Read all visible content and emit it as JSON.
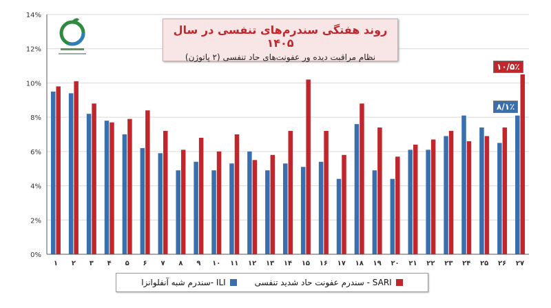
{
  "colors": {
    "ili": "#3a6fae",
    "sari": "#c0262c",
    "grid": "#d9d9d9",
    "axis": "#555555"
  },
  "title": {
    "main": "روند هفتگی سندرم‌های تنفسی در سال ۱۴۰۵",
    "sub": "نظام مراقبت دیده ور عفونت‌های حاد تنفسی (۲ پاتوژن)"
  },
  "logo_icon": "ministry-logo-icon",
  "callouts": {
    "sari_last": "۱۰/۵٪",
    "ili_last": "۸/۱٪"
  },
  "legend": {
    "ili": "ILI -سندرم شبه آنفلوانزا",
    "sari": "SARI - سندرم عفونت حاد شدید تنفسی"
  },
  "chart_data": {
    "type": "bar",
    "categories": [
      "۱",
      "۲",
      "۳",
      "۴",
      "۵",
      "۶",
      "۷",
      "۸",
      "۹",
      "۱۰",
      "۱۱",
      "۱۲",
      "۱۳",
      "۱۴",
      "۱۵",
      "۱۶",
      "۱۷",
      "۱۸",
      "۱۹",
      "۲۰",
      "۲۱",
      "۲۲",
      "۲۳",
      "۲۴",
      "۲۵",
      "۲۶",
      "۲۷"
    ],
    "series": [
      {
        "name": "ILI -سندرم شبه آنفلوانزا",
        "color": "#3a6fae",
        "values": [
          9.5,
          9.4,
          8.2,
          7.8,
          7.0,
          6.2,
          5.9,
          4.9,
          5.4,
          4.9,
          5.3,
          6.0,
          4.9,
          5.3,
          5.1,
          5.4,
          4.4,
          7.6,
          4.9,
          4.4,
          6.1,
          6.1,
          6.9,
          8.1,
          7.4,
          6.5,
          8.1
        ]
      },
      {
        "name": "SARI - سندرم عفونت حاد شدید تنفسی",
        "color": "#c0262c",
        "values": [
          9.8,
          10.1,
          8.8,
          7.7,
          7.9,
          8.4,
          7.2,
          6.1,
          6.8,
          6.0,
          7.0,
          5.5,
          5.8,
          7.2,
          10.2,
          7.2,
          5.8,
          8.8,
          7.4,
          5.7,
          6.4,
          6.7,
          7.2,
          6.6,
          6.9,
          7.4,
          10.5
        ]
      }
    ],
    "yticks": [
      "0%",
      "2%",
      "4%",
      "6%",
      "8%",
      "10%",
      "12%",
      "14%"
    ],
    "ylim": [
      0,
      14
    ],
    "grid": true,
    "legend_position": "bottom"
  }
}
